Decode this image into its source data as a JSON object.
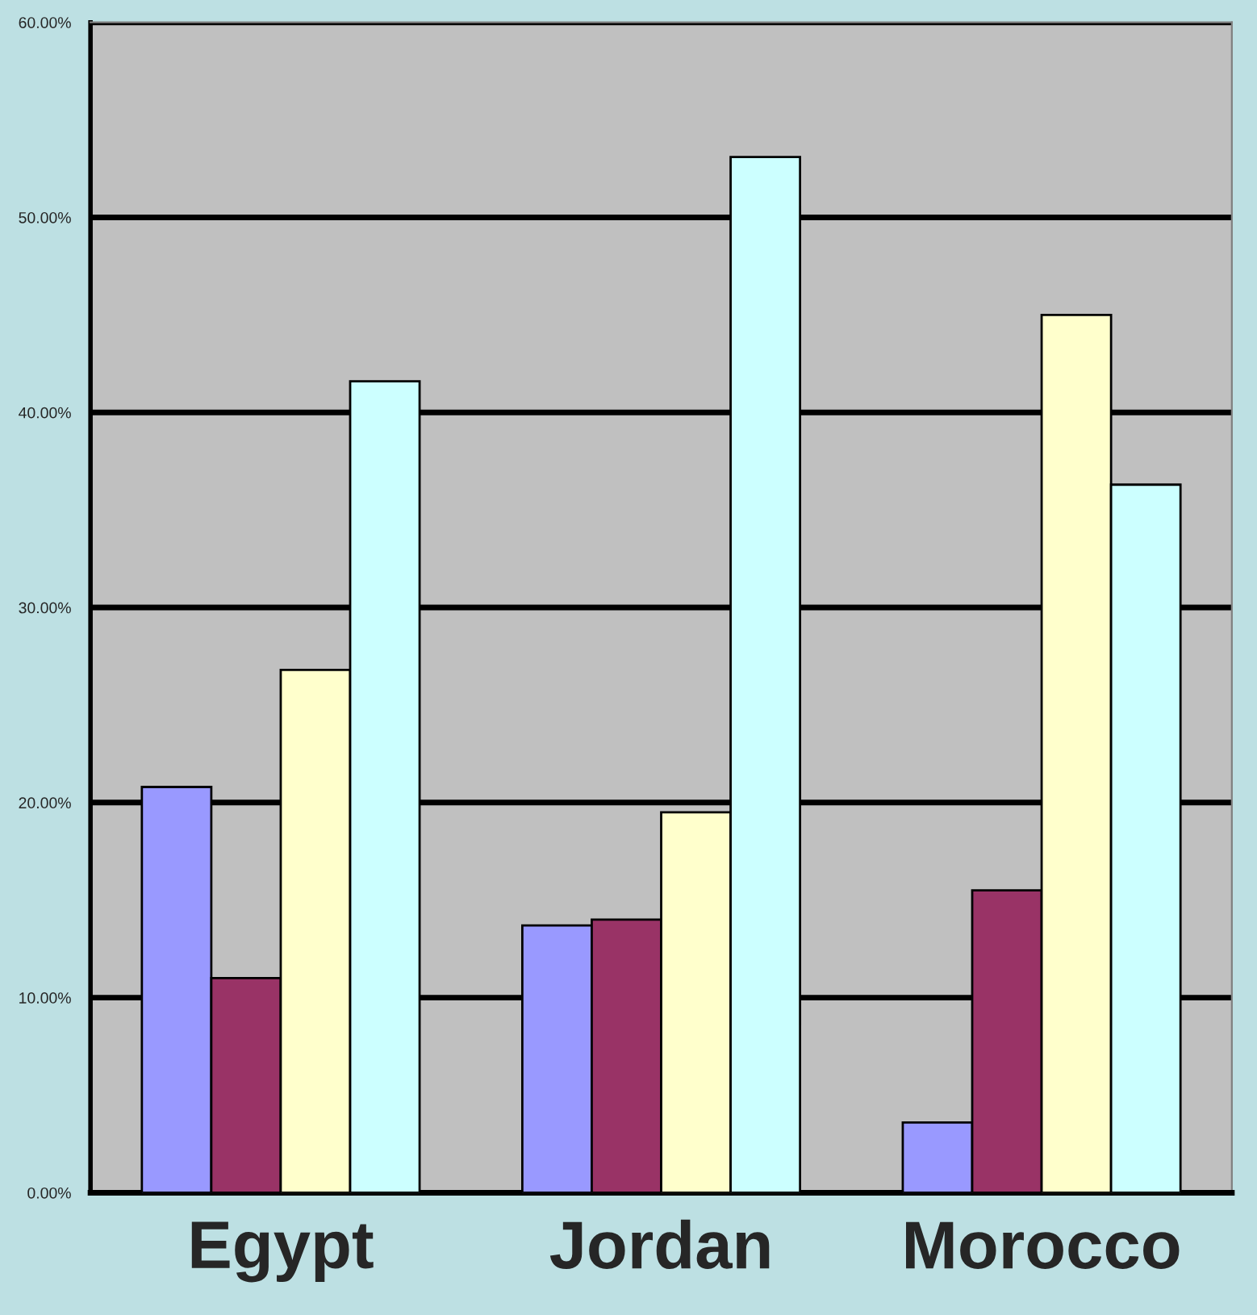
{
  "chart_data": {
    "type": "bar",
    "categories": [
      "Egypt",
      "Jordan",
      "Morocco"
    ],
    "series": [
      {
        "color": "#9999ff",
        "values": [
          20.8,
          13.7,
          3.6
        ]
      },
      {
        "color": "#993366",
        "values": [
          11.0,
          14.0,
          15.5
        ]
      },
      {
        "color": "#ffffcc",
        "values": [
          26.8,
          19.5,
          45.0
        ]
      },
      {
        "color": "#ccffff",
        "values": [
          41.6,
          53.1,
          36.3
        ]
      }
    ],
    "ylim": [
      0,
      60
    ],
    "yticks": [
      {
        "value": 0,
        "label": "0.00%"
      },
      {
        "value": 10,
        "label": "10.00%"
      },
      {
        "value": 20,
        "label": "20.00%"
      },
      {
        "value": 30,
        "label": "30.00%"
      },
      {
        "value": 40,
        "label": "40.00%"
      },
      {
        "value": 50,
        "label": "50.00%"
      },
      {
        "value": 60,
        "label": "60.00%"
      }
    ],
    "grid": "y"
  }
}
